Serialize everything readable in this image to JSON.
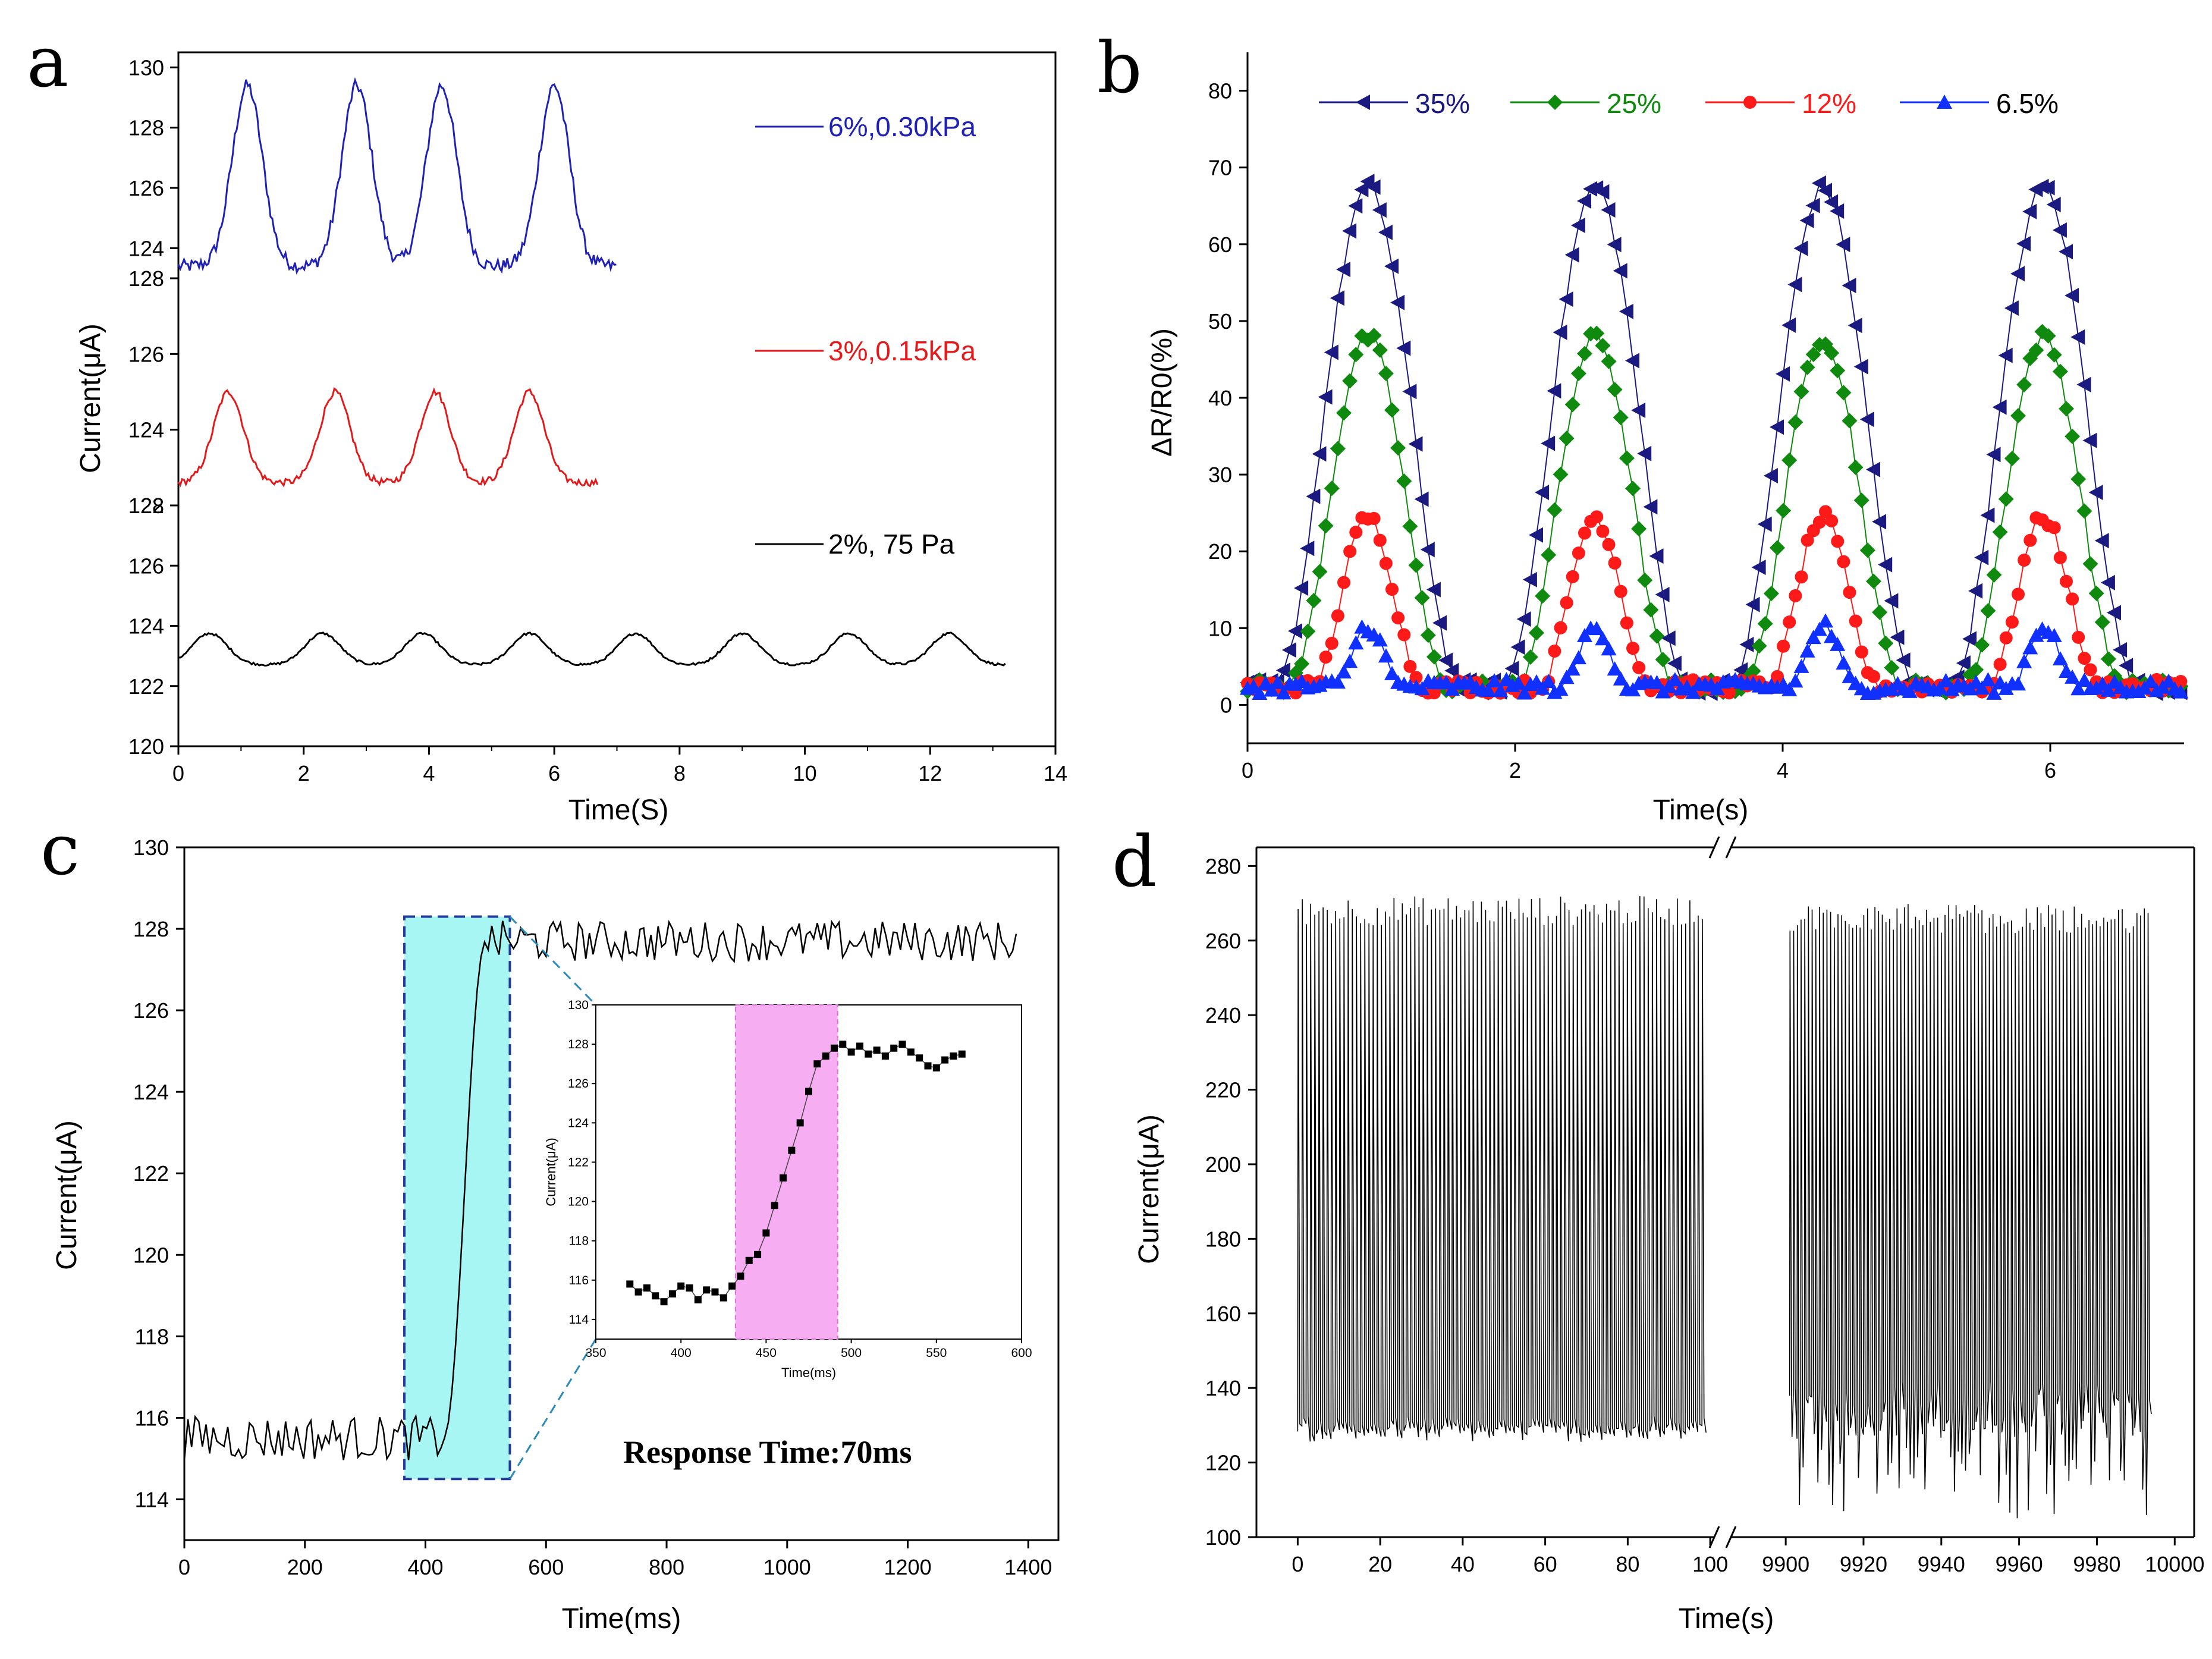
{
  "figure_panels": [
    "a",
    "b",
    "c",
    "d"
  ],
  "chart_data": [
    {
      "panel": "a",
      "type": "line",
      "xlabel": "Time(S)",
      "ylabel": "Current(μA)",
      "xlim": [
        0,
        14
      ],
      "xticks": [
        0,
        2,
        4,
        6,
        8,
        10,
        12,
        14
      ],
      "subplots": [
        {
          "name": "6%,0.30kPa",
          "color": "#1f22b4",
          "ylim": [
            123,
            130.5
          ],
          "yticks": [
            124,
            126,
            128,
            130
          ],
          "baseline": 123.4,
          "peak_height": 6.0,
          "peaks": [
            1.1,
            2.85,
            4.2,
            6.0
          ],
          "x_end": 7.0
        },
        {
          "name": "3%,0.15kPa",
          "color": "#e31a1c",
          "ylim": [
            122,
            128
          ],
          "yticks": [
            122,
            124,
            126,
            128
          ],
          "baseline": 122.6,
          "peak_height": 2.4,
          "peaks": [
            0.8,
            2.5,
            4.1,
            5.6
          ],
          "x_end": 6.7
        },
        {
          "name": "2%, 75 Pa",
          "color": "#000000",
          "ylim": [
            120,
            128
          ],
          "yticks": [
            120,
            122,
            124,
            126,
            128
          ],
          "baseline": 122.7,
          "peak_height": 1.05,
          "peaks": [
            0.5,
            2.3,
            3.9,
            5.6,
            7.3,
            9.0,
            10.7,
            12.3
          ],
          "x_end": 13.2
        }
      ]
    },
    {
      "panel": "b",
      "type": "line",
      "xlabel": "Time(s)",
      "ylabel": "ΔR/R0(%)",
      "xlim": [
        0,
        7
      ],
      "ylim": [
        -5,
        85
      ],
      "xticks": [
        0,
        2,
        4,
        6
      ],
      "yticks": [
        0,
        10,
        20,
        30,
        40,
        50,
        60,
        70,
        80
      ],
      "peak_times": [
        0.9,
        2.6,
        4.3,
        5.95
      ],
      "series": [
        {
          "name": "35%",
          "color": "#1a1a80",
          "marker": "triangle-left",
          "peak": 65,
          "width": 0.7
        },
        {
          "name": "25%",
          "color": "#0f8a0f",
          "marker": "diamond",
          "peak": 45.5,
          "width": 0.6
        },
        {
          "name": "12%",
          "color": "#ff1a1a",
          "marker": "circle",
          "peak": 22,
          "width": 0.42
        },
        {
          "name": "6.5%",
          "color": "#1030ff",
          "marker": "triangle-up",
          "peak": 8,
          "width": 0.25
        }
      ]
    },
    {
      "panel": "c",
      "type": "line",
      "xlabel": "Time(ms)",
      "ylabel": "Current(μA)",
      "xlim": [
        0,
        1450
      ],
      "ylim": [
        113,
        130
      ],
      "xticks": [
        0,
        200,
        400,
        600,
        800,
        1000,
        1200,
        1400
      ],
      "yticks": [
        114,
        116,
        118,
        120,
        122,
        124,
        126,
        128,
        130
      ],
      "low_level": 115.5,
      "high_level": 127.7,
      "rise_start": 430,
      "rise_end": 500,
      "highlight_range": [
        365,
        540
      ],
      "annotation": "Response Time:70ms",
      "inset": {
        "xlabel": "Time(ms)",
        "ylabel": "Current(μA)",
        "xlim": [
          350,
          600
        ],
        "ylim": [
          113,
          130
        ],
        "xticks": [
          350,
          400,
          450,
          500,
          550,
          600
        ],
        "yticks": [
          114,
          116,
          118,
          120,
          122,
          124,
          126,
          128,
          130
        ],
        "highlight_range": [
          432,
          492
        ],
        "x": [
          370,
          375,
          380,
          385,
          390,
          395,
          400,
          405,
          410,
          415,
          420,
          425,
          430,
          435,
          440,
          445,
          450,
          455,
          460,
          465,
          470,
          475,
          480,
          485,
          490,
          495,
          500,
          505,
          510,
          515,
          520,
          525,
          530,
          535,
          540,
          545,
          550,
          555,
          560,
          565
        ],
        "y": [
          115.8,
          115.4,
          115.6,
          115.2,
          114.9,
          115.3,
          115.7,
          115.6,
          115.0,
          115.5,
          115.4,
          115.1,
          115.7,
          116.2,
          117.0,
          117.3,
          118.4,
          119.8,
          121.2,
          122.6,
          124.0,
          125.6,
          127.0,
          127.4,
          127.8,
          128.0,
          127.6,
          127.9,
          127.5,
          127.7,
          127.4,
          127.8,
          128.0,
          127.6,
          127.3,
          126.9,
          126.8,
          127.2,
          127.4,
          127.5
        ]
      }
    },
    {
      "panel": "d",
      "type": "line",
      "xlabel": "Time(s)",
      "ylabel": "Current(μA)",
      "ylim": [
        100,
        285
      ],
      "yticks": [
        100,
        120,
        140,
        160,
        180,
        200,
        220,
        240,
        260,
        280
      ],
      "segments": [
        {
          "xlim": [
            -10,
            102
          ],
          "xticks": [
            0,
            20,
            40,
            60,
            80,
            100
          ],
          "data_range": [
            0,
            99
          ],
          "high": 268,
          "low": 128
        },
        {
          "xlim": [
            9885,
            10005
          ],
          "xticks": [
            9900,
            9920,
            9940,
            9960,
            9980,
            10000
          ],
          "data_range": [
            9901,
            9994
          ],
          "high": 266,
          "low": 133
        }
      ],
      "cycles_per_segment": 98,
      "break_marker": "//"
    }
  ]
}
